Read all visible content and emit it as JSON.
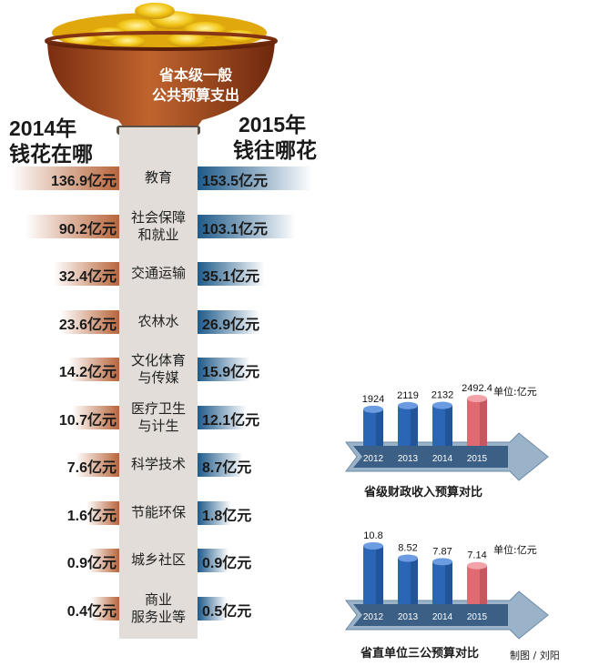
{
  "bowl": {
    "line1": "省本级一般",
    "line2": "公共预算支出"
  },
  "left": {
    "year": "2014年",
    "sub": "钱花在哪"
  },
  "right": {
    "year": "2015年",
    "sub": "钱往哪花"
  },
  "colors": {
    "y2014": "#b8653a",
    "y2015": "#1e5a8a",
    "bar_red": "#e06a72",
    "bar_blue": "#2a66b5"
  },
  "chart_data": [
    {
      "type": "bar",
      "orientation": "butterfly",
      "categories": [
        "教育",
        "社会保障和就业",
        "交通运输",
        "农林水",
        "文化体育与传媒",
        "医疗卫生与计生",
        "科学技术",
        "节能环保",
        "城乡社区",
        "商业服务业等"
      ],
      "category_lines": [
        [
          "教育"
        ],
        [
          "社会保障",
          "和就业"
        ],
        [
          "交通运输"
        ],
        [
          "农林水"
        ],
        [
          "文化体育",
          "与传媒"
        ],
        [
          "医疗卫生",
          "与计生"
        ],
        [
          "科学技术"
        ],
        [
          "节能环保"
        ],
        [
          "城乡社区"
        ],
        [
          "商业",
          "服务业等"
        ]
      ],
      "series": [
        {
          "name": "2014年",
          "values": [
            136.9,
            90.2,
            32.4,
            23.6,
            14.2,
            10.7,
            7.6,
            1.6,
            0.9,
            0.4
          ],
          "labels": [
            "136.9亿元",
            "90.2亿元",
            "32.4亿元",
            "23.6亿元",
            "14.2亿元",
            "10.7亿元",
            "7.6亿元",
            "1.6亿元",
            "0.9亿元",
            "0.4亿元"
          ]
        },
        {
          "name": "2015年",
          "values": [
            153.5,
            103.1,
            35.1,
            26.9,
            15.9,
            12.1,
            8.7,
            1.8,
            0.9,
            0.5
          ],
          "labels": [
            "153.5亿元",
            "103.1亿元",
            "35.1亿元",
            "26.9亿元",
            "15.9亿元",
            "12.1亿元",
            "8.7亿元",
            "1.8亿元",
            "0.9亿元",
            "0.5亿元"
          ]
        }
      ]
    },
    {
      "type": "bar",
      "title": "省级财政收入预算对比",
      "unit": "单位:亿元",
      "categories": [
        "2012",
        "2013",
        "2014",
        "2015"
      ],
      "values": [
        1924,
        2119,
        2132,
        2492.4
      ],
      "labels": [
        "1924",
        "2119",
        "2132",
        "2492.4"
      ],
      "highlight": "2015"
    },
    {
      "type": "bar",
      "title": "省直单位三公预算对比",
      "unit": "单位:亿元",
      "categories": [
        "2012",
        "2013",
        "2014",
        "2015"
      ],
      "values": [
        10.8,
        8.52,
        7.87,
        7.14
      ],
      "labels": [
        "10.8",
        "8.52",
        "7.87",
        "7.14"
      ],
      "highlight": "2015"
    }
  ],
  "credit": "制图 / 刘阳"
}
